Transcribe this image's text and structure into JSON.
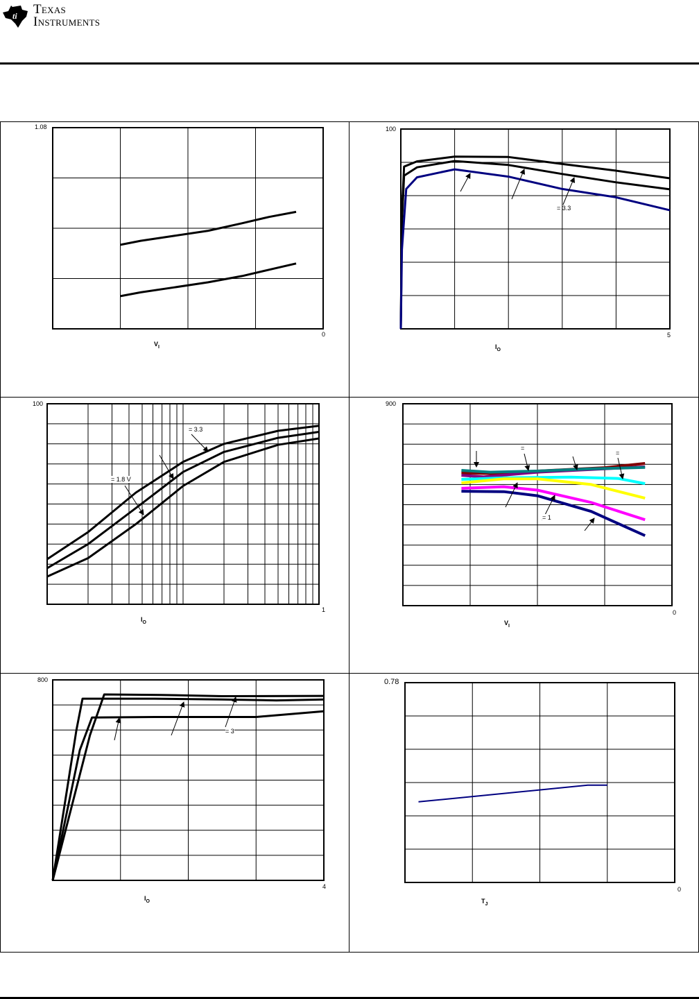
{
  "header": {
    "logo_line1": "Texas",
    "logo_line2": "Instruments"
  },
  "chart_data": [
    {
      "type": "line",
      "id": "c1",
      "ylabel_top_tick": "1.08",
      "x_end_tick": "0",
      "xlabel": {
        "main": "V",
        "sub": "I"
      },
      "xlim": [
        0,
        4
      ],
      "ylim": [
        1.0,
        1.08
      ],
      "grid": true,
      "annotations": [],
      "series": [
        {
          "name": "upper",
          "color": "#000000",
          "points": [
            [
              1.0,
              1.0334
            ],
            [
              1.3,
              1.035
            ],
            [
              1.8,
              1.037
            ],
            [
              2.3,
              1.039
            ],
            [
              2.8,
              1.042
            ],
            [
              3.2,
              1.0445
            ],
            [
              3.6,
              1.0465
            ]
          ]
        },
        {
          "name": "lower",
          "color": "#000000",
          "points": [
            [
              1.0,
              1.013
            ],
            [
              1.3,
              1.0145
            ],
            [
              1.8,
              1.0165
            ],
            [
              2.3,
              1.0185
            ],
            [
              2.8,
              1.021
            ],
            [
              3.2,
              1.0235
            ],
            [
              3.6,
              1.026
            ]
          ]
        }
      ]
    },
    {
      "type": "line",
      "id": "c2",
      "ylabel_top_tick": "100",
      "x_end_tick": "5",
      "xlabel": {
        "main": "I",
        "sub": "O"
      },
      "xlim": [
        0,
        5
      ],
      "ylim": [
        40,
        100
      ],
      "grid": true,
      "annotations": [
        "= 3.3"
      ],
      "series": [
        {
          "name": "top",
          "color": "#000000",
          "points": [
            [
              0,
              40
            ],
            [
              0.02,
              75
            ],
            [
              0.06,
              88.7
            ],
            [
              0.3,
              90.3
            ],
            [
              1,
              91.7
            ],
            [
              2,
              91.6
            ],
            [
              3,
              89.5
            ],
            [
              4,
              87.5
            ],
            [
              5,
              85.2
            ]
          ]
        },
        {
          "name": "middle",
          "color": "#000000",
          "points": [
            [
              0,
              40
            ],
            [
              0.02,
              72
            ],
            [
              0.06,
              86
            ],
            [
              0.3,
              88.5
            ],
            [
              1,
              90.4
            ],
            [
              2,
              89.2
            ],
            [
              3,
              86.5
            ],
            [
              4,
              84
            ],
            [
              5,
              81.9
            ]
          ]
        },
        {
          "name": "blue",
          "color": "#000080",
          "points": [
            [
              0,
              40
            ],
            [
              0.02,
              63.8
            ],
            [
              0.1,
              82
            ],
            [
              0.3,
              85.5
            ],
            [
              1,
              87.9
            ],
            [
              2,
              85.7
            ],
            [
              3,
              82
            ],
            [
              4,
              79.5
            ],
            [
              5,
              75.6
            ]
          ]
        }
      ]
    },
    {
      "type": "line",
      "id": "c3",
      "xscale": "log",
      "ylabel_top_tick": "100",
      "x_end_tick": "1",
      "xlabel": {
        "main": "I",
        "sub": "O"
      },
      "xlim": [
        0.01,
        1
      ],
      "ylim": [
        0,
        100
      ],
      "grid": true,
      "annotations": [
        "= 3.3",
        "= 1.8 V"
      ],
      "series": [
        {
          "name": "top",
          "color": "#000000",
          "points": [
            [
              0.01,
              22.5
            ],
            [
              0.02,
              36
            ],
            [
              0.045,
              55.7
            ],
            [
              0.1,
              71
            ],
            [
              0.2,
              80
            ],
            [
              0.5,
              86.5
            ],
            [
              1,
              89
            ]
          ]
        },
        {
          "name": "mid",
          "color": "#000000",
          "points": [
            [
              0.01,
              18
            ],
            [
              0.02,
              30
            ],
            [
              0.045,
              48
            ],
            [
              0.1,
              66
            ],
            [
              0.2,
              76
            ],
            [
              0.5,
              83
            ],
            [
              1,
              86
            ]
          ]
        },
        {
          "name": "bottom",
          "color": "#000000",
          "points": [
            [
              0.01,
              13.8
            ],
            [
              0.02,
              23
            ],
            [
              0.045,
              40
            ],
            [
              0.1,
              59
            ],
            [
              0.2,
              71
            ],
            [
              0.5,
              79.5
            ],
            [
              1,
              82.7
            ]
          ]
        }
      ]
    },
    {
      "type": "line",
      "id": "c4",
      "ylabel_top_tick": "900",
      "x_end_tick": "0",
      "xlabel": {
        "main": "V",
        "sub": "I"
      },
      "xlim": [
        0,
        4
      ],
      "ylim": [
        0,
        900
      ],
      "grid": true,
      "annotations": [
        "=",
        "=",
        "= 1"
      ],
      "series": [
        {
          "name": "dark-red",
          "color": "#800000",
          "points": [
            [
              0.87,
              591
            ],
            [
              1.5,
              588
            ],
            [
              2,
              600
            ],
            [
              3,
              615
            ],
            [
              3.6,
              634
            ]
          ]
        },
        {
          "name": "purple",
          "color": "#800080",
          "points": [
            [
              0.87,
              581
            ],
            [
              1.2,
              574
            ],
            [
              2,
              595
            ],
            [
              3,
              610
            ],
            [
              3.6,
              619
            ]
          ]
        },
        {
          "name": "teal",
          "color": "#008080",
          "points": [
            [
              0.87,
              603
            ],
            [
              1.3,
              595
            ],
            [
              2,
              600
            ],
            [
              2.8,
              610
            ],
            [
              3.6,
              616
            ]
          ]
        },
        {
          "name": "cyan",
          "color": "#00ffff",
          "points": [
            [
              0.87,
              563
            ],
            [
              1.5,
              570
            ],
            [
              2.5,
              573
            ],
            [
              3.2,
              567
            ],
            [
              3.6,
              544
            ]
          ]
        },
        {
          "name": "yellow",
          "color": "#ffff00",
          "points": [
            [
              0.87,
              547
            ],
            [
              1.5,
              565
            ],
            [
              2,
              565
            ],
            [
              2.8,
              540
            ],
            [
              3.6,
              479
            ]
          ]
        },
        {
          "name": "magenta",
          "color": "#ff00ff",
          "points": [
            [
              0.87,
              523
            ],
            [
              1.5,
              530
            ],
            [
              2,
              515
            ],
            [
              2.8,
              460
            ],
            [
              3.6,
              383
            ]
          ]
        },
        {
          "name": "navy",
          "color": "#000080",
          "points": [
            [
              0.87,
              510
            ],
            [
              1.5,
              508
            ],
            [
              2,
              490
            ],
            [
              2.8,
              420
            ],
            [
              3.6,
              312
            ]
          ]
        }
      ]
    },
    {
      "type": "line",
      "id": "c5",
      "ylabel_top_tick": "800",
      "x_end_tick": "4",
      "xlabel": {
        "main": "I",
        "sub": "O"
      },
      "xlim": [
        0,
        4
      ],
      "ylim": [
        0,
        800
      ],
      "grid": true,
      "annotations": [
        "= 3"
      ],
      "series": [
        {
          "name": "a",
          "color": "#000000",
          "points": [
            [
              0,
              0
            ],
            [
              0.35,
              600
            ],
            [
              0.44,
              725
            ],
            [
              1.5,
              725
            ],
            [
              2.5,
              722
            ],
            [
              3.3,
              718
            ],
            [
              4,
              722
            ]
          ]
        },
        {
          "name": "b",
          "color": "#000000",
          "points": [
            [
              0,
              0
            ],
            [
              0.55,
              580
            ],
            [
              0.76,
              742
            ],
            [
              1.6,
              740
            ],
            [
              2.5,
              735
            ],
            [
              4,
              736
            ]
          ]
        },
        {
          "name": "c",
          "color": "#000000",
          "points": [
            [
              0,
              0
            ],
            [
              0.4,
              520
            ],
            [
              0.58,
              650
            ],
            [
              1.5,
              652
            ],
            [
              3,
              652
            ],
            [
              4,
              675
            ]
          ]
        }
      ]
    },
    {
      "type": "line",
      "id": "c6",
      "ylabel_top_tick": "0.78",
      "x_end_tick": "0",
      "xlabel": {
        "main": "T",
        "sub": "J"
      },
      "xlim": [
        0,
        4
      ],
      "ylim": [
        0.72,
        0.78
      ],
      "grid": true,
      "annotations": [],
      "series": [
        {
          "name": "line",
          "color": "#000080",
          "points": [
            [
              0.2,
              0.7442
            ],
            [
              2.71,
              0.7492
            ],
            [
              3.0,
              0.7492
            ]
          ]
        }
      ]
    }
  ]
}
